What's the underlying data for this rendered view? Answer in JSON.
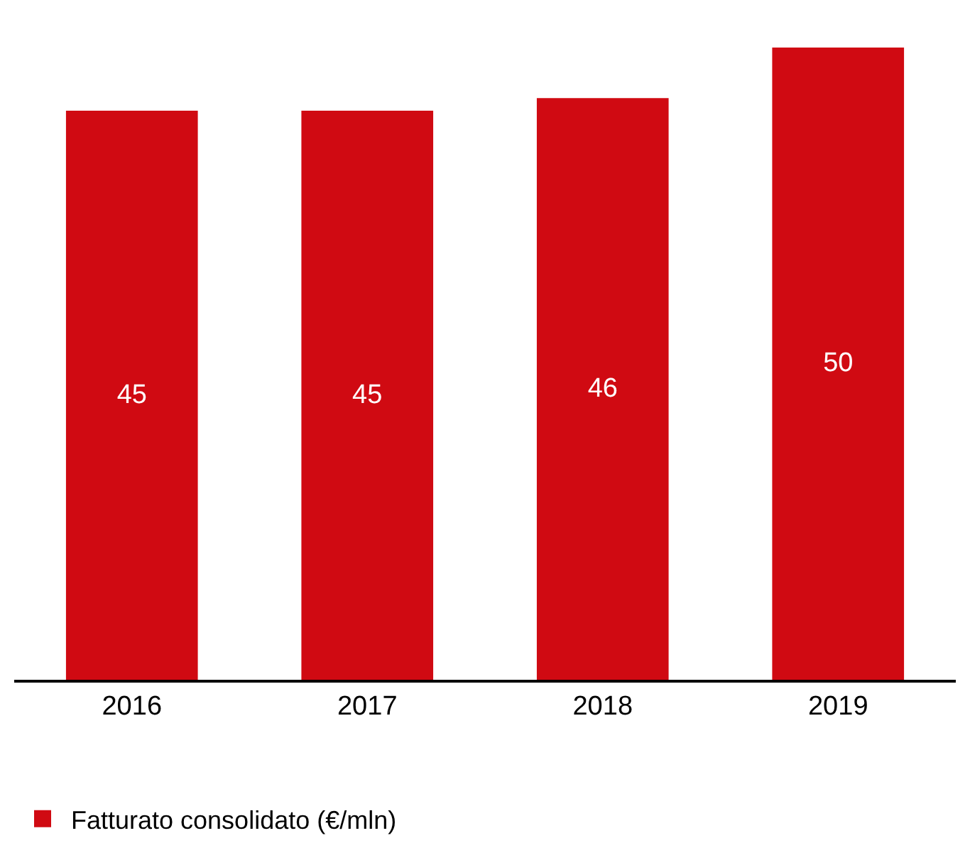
{
  "chart_data": {
    "type": "bar",
    "categories": [
      "2016",
      "2017",
      "2018",
      "2019"
    ],
    "series": [
      {
        "name": "Fatturato consolidato (€/mln)",
        "color": "#d00a12",
        "values": [
          45,
          45,
          46,
          50
        ]
      }
    ],
    "data_labels": true,
    "legend": "bottom left"
  }
}
